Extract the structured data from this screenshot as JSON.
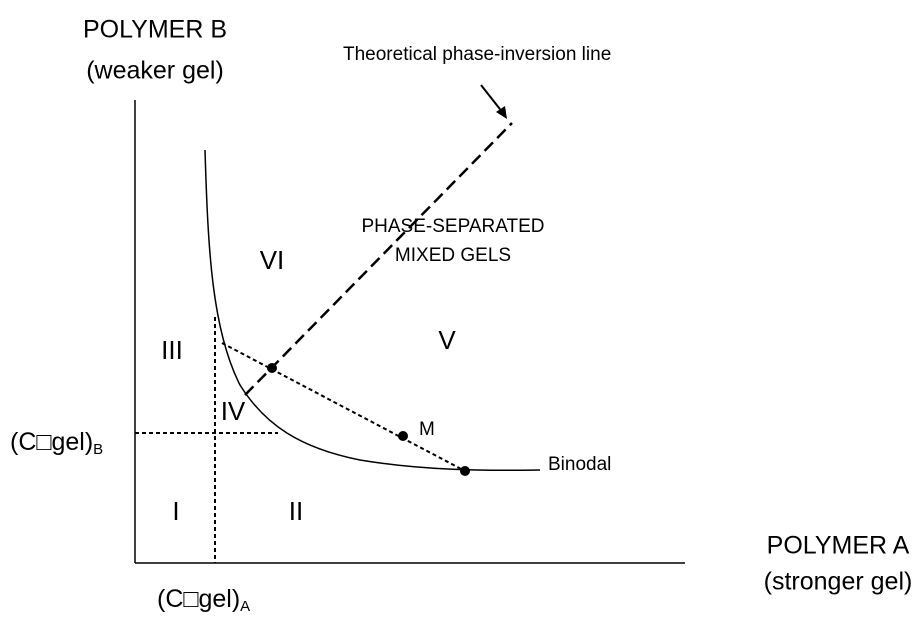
{
  "axes": {
    "y_title": "POLYMER B",
    "y_subtitle": "(weaker gel)",
    "x_title": "POLYMER A",
    "x_subtitle": "(stronger gel)"
  },
  "concentration_labels": {
    "b_main": "(C□gel)",
    "b_sub": "B",
    "a_main": "(C□gel)",
    "a_sub": "A"
  },
  "annotations": {
    "inversion_line": "Theoretical phase-inversion line",
    "mixed_gels_1": "PHASE-SEPARATED",
    "mixed_gels_2": "MIXED GELS",
    "binodal": "Binodal",
    "point_m": "M"
  },
  "regions": [
    "I",
    "II",
    "III",
    "IV",
    "V",
    "VI"
  ]
}
